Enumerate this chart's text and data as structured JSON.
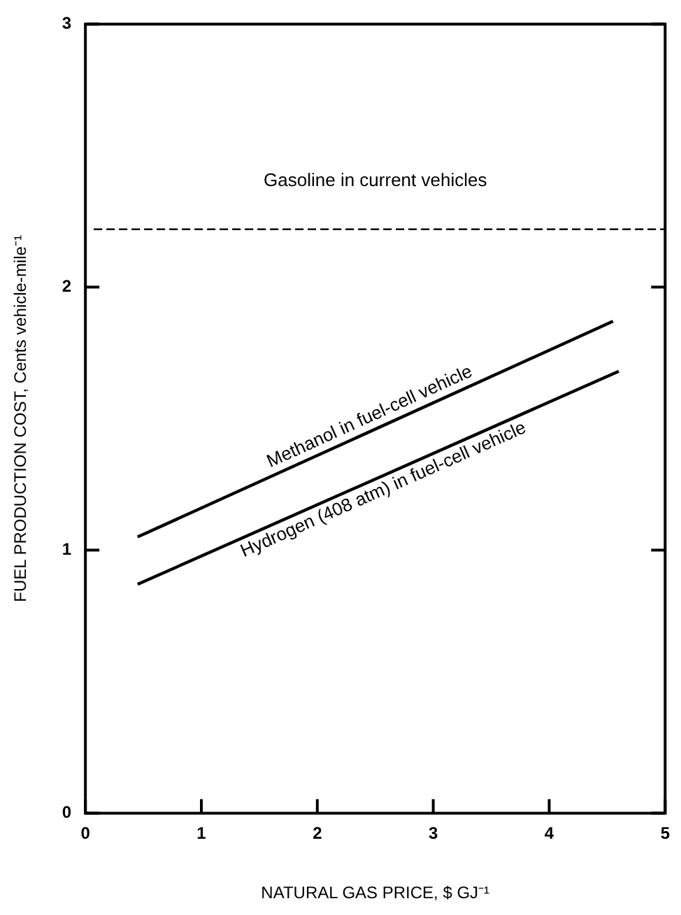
{
  "chart_data": {
    "type": "line",
    "xlabel": "NATURAL GAS PRICE, $ GJ⁻¹",
    "ylabel": "FUEL PRODUCTION COST, Cents vehicle-mile⁻¹",
    "series": [
      {
        "name": "Methanol in fuel-cell vehicle",
        "color": "#000000",
        "x": [
          0.45,
          4.55
        ],
        "values": [
          1.05,
          1.87
        ]
      },
      {
        "name": "Hydrogen (408 atm) in fuel-cell vehicle",
        "color": "#000000",
        "x": [
          0.45,
          4.6
        ],
        "values": [
          0.87,
          1.68
        ]
      }
    ],
    "xlim": [
      0,
      5
    ],
    "xticks": [
      0,
      1,
      2,
      3,
      4,
      5
    ],
    "ylim": [
      0,
      3
    ],
    "yticks": [
      0,
      1,
      2,
      3
    ],
    "ref_lines": [
      {
        "axis": "y",
        "value": 2.22,
        "label": "Gasoline in current vehicles",
        "color": "#000000",
        "line_style": "dashed"
      }
    ],
    "grid": false,
    "legend": false,
    "marker": "none",
    "line_style": "solid"
  }
}
